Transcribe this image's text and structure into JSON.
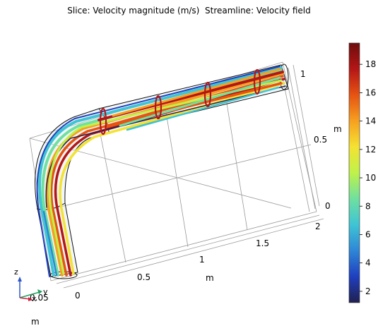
{
  "title": "Slice: Velocity magnitude (m/s)  Streamline: Velocity field",
  "colors": {
    "colormap": [
      "#21214f",
      "#1f3fbf",
      "#2e86d6",
      "#3fc4d4",
      "#6fe0a0",
      "#bff24a",
      "#f4e233",
      "#f6a020",
      "#e65312",
      "#b41616",
      "#6e0d0d"
    ],
    "frame": "#9a9a9a",
    "pipe": "#111111"
  },
  "chart_data": {
    "type": "surface-3d",
    "axes": {
      "x": {
        "unit": "m",
        "ticks": [
          "0",
          "0.5",
          "1",
          "1.5",
          "2"
        ]
      },
      "y": {
        "unit": "m",
        "ticks": [
          "0.05"
        ]
      },
      "z": {
        "unit": "m",
        "ticks": [
          "0",
          "0.5",
          "1"
        ]
      }
    },
    "colorbar": {
      "range": [
        1.2,
        19.5
      ],
      "ticks": [
        2,
        4,
        6,
        8,
        10,
        12,
        14,
        16,
        18
      ]
    },
    "orientation_triad": {
      "labels": [
        "z",
        "y",
        "x"
      ]
    }
  }
}
